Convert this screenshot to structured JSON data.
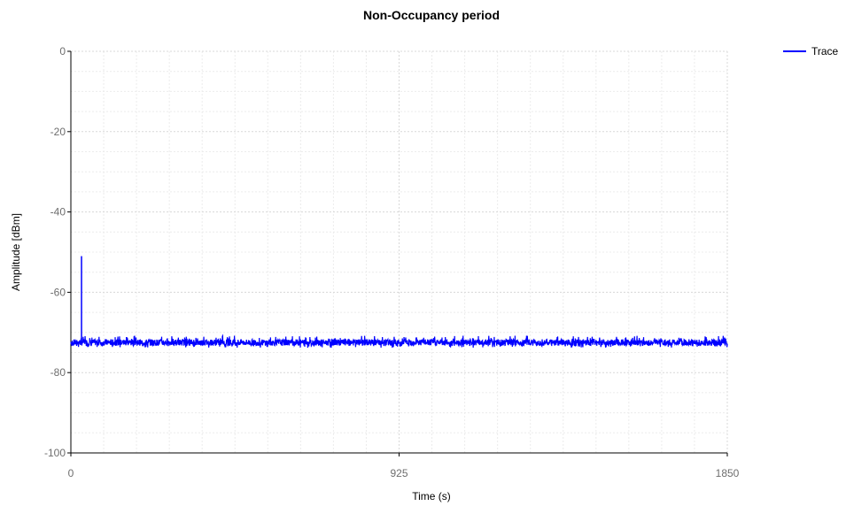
{
  "chart_data": {
    "type": "line",
    "title": "Non-Occupancy period",
    "xlabel": "Time (s)",
    "ylabel": "Amplitude [dBm]",
    "xlim": [
      0,
      1850
    ],
    "ylim": [
      -100,
      0
    ],
    "x_ticks": [
      0,
      925,
      1850
    ],
    "y_ticks": [
      0,
      -20,
      -40,
      -60,
      -80,
      -100
    ],
    "grid": true,
    "legend_position": "top-right",
    "series": [
      {
        "name": "Trace",
        "color": "#0000ff",
        "baseline_dbm": -72.5,
        "noise_band_dbm": [
          -73.8,
          -70.8
        ],
        "spikes": [
          {
            "x": 30,
            "y": -51
          }
        ]
      }
    ]
  }
}
